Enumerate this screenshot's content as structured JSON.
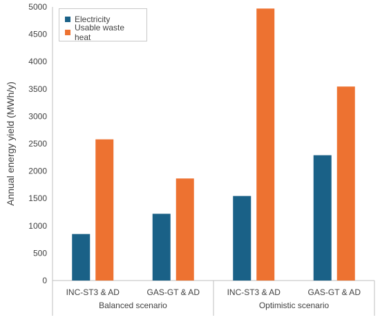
{
  "chart_data": {
    "type": "bar",
    "title": "",
    "xlabel": "",
    "ylabel": "Annual energy yield (MWh/y)",
    "ylim": [
      0,
      5000
    ],
    "yticks": [
      0,
      500,
      1000,
      1500,
      2000,
      2500,
      3000,
      3500,
      4000,
      4500,
      5000
    ],
    "grid": false,
    "legend_position": "top-left",
    "categories": [
      "INC-ST3 & AD",
      "GAS-GT & AD",
      "INC-ST3 & AD",
      "GAS-GT & AD"
    ],
    "groups": [
      {
        "label": "Balanced scenario",
        "categories": 2
      },
      {
        "label": "Optimistic scenario",
        "categories": 2
      }
    ],
    "series": [
      {
        "name": "Electricity",
        "color": "#1a6187",
        "values": [
          850,
          1220,
          1545,
          2290
        ]
      },
      {
        "name": "Usable waste heat",
        "color": "#ed7231",
        "values": [
          2580,
          1865,
          4970,
          3545
        ]
      }
    ]
  }
}
